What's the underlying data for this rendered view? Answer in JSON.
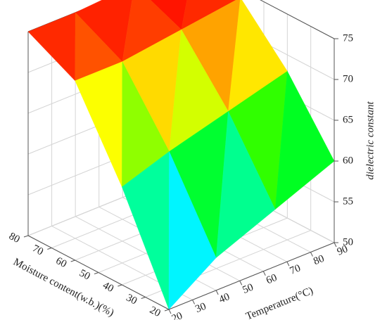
{
  "chart_data": {
    "type": "surface",
    "x_label": "Moisture content(w.b.)(%)",
    "y_label": "Temperature(°C)",
    "z_label": "dielectric constant",
    "x": [
      20,
      40,
      60,
      80
    ],
    "y": [
      20,
      40,
      65,
      90
    ],
    "values": [
      [
        50,
        54,
        57,
        60
      ],
      [
        62,
        64,
        66,
        68
      ],
      [
        72,
        72,
        73,
        74
      ],
      [
        75,
        75,
        75.5,
        75
      ]
    ],
    "xlim": [
      20,
      80
    ],
    "xticks": [
      20,
      30,
      40,
      50,
      60,
      70,
      80
    ],
    "ylim": [
      20,
      90
    ],
    "yticks": [
      20,
      30,
      40,
      50,
      60,
      70,
      80,
      90
    ],
    "zlim": [
      50,
      75
    ],
    "zticks": [
      50,
      55,
      60,
      65,
      70,
      75
    ],
    "colormap": [
      "#0000ff",
      "#00ffff",
      "#00ff00",
      "#ffff00",
      "#ff0000"
    ],
    "grid": true
  }
}
